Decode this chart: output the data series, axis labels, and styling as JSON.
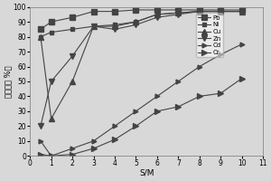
{
  "x": [
    0.5,
    1,
    2,
    3,
    4,
    5,
    6,
    7,
    8,
    9,
    10
  ],
  "Pb": [
    85,
    90,
    93,
    97,
    97,
    98,
    98,
    98,
    98,
    98,
    98
  ],
  "Ni": [
    80,
    83,
    85,
    87,
    88,
    90,
    95,
    96,
    97,
    97,
    97
  ],
  "Cu": [
    80,
    25,
    50,
    87,
    87,
    90,
    95,
    96,
    97,
    97,
    97
  ],
  "Zn": [
    20,
    50,
    67,
    87,
    85,
    88,
    93,
    95,
    97,
    97,
    97
  ],
  "Cd": [
    10,
    0,
    5,
    10,
    20,
    30,
    40,
    50,
    60,
    68,
    75
  ],
  "Cr": [
    1,
    0,
    1,
    5,
    11,
    20,
    30,
    33,
    40,
    42,
    52
  ],
  "xlabel": "S/M",
  "ylabel": "截留率（ %）",
  "xlim": [
    0,
    11
  ],
  "ylim": [
    0,
    100
  ],
  "xticks": [
    0,
    1,
    2,
    3,
    4,
    5,
    6,
    7,
    8,
    9,
    10,
    11
  ],
  "yticks": [
    0,
    10,
    20,
    30,
    40,
    50,
    60,
    70,
    80,
    90,
    100
  ],
  "background_color": "#d8d8d8",
  "line_color": "#444444",
  "series_order": [
    "Pb",
    "Ni",
    "Cu",
    "Zn",
    "Cd",
    "Cr"
  ],
  "markers": [
    "s",
    "s",
    "^",
    "v",
    ">",
    ">"
  ],
  "markersizes": [
    4,
    3,
    4,
    4,
    3.5,
    4.5
  ]
}
